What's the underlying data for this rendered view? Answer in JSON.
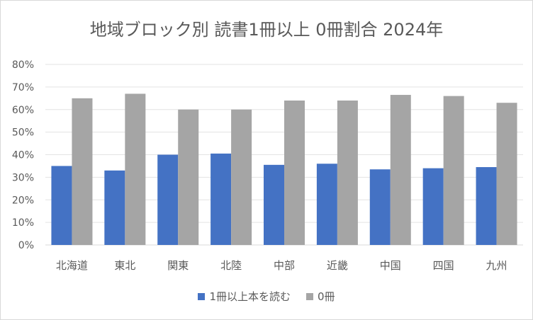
{
  "chart_data": {
    "type": "bar",
    "title": "地域ブロック別 読書1冊以上 0冊割合 2024年",
    "categories": [
      "北海道",
      "東北",
      "関東",
      "北陸",
      "中部",
      "近畿",
      "中国",
      "四国",
      "九州"
    ],
    "series": [
      {
        "name": "1冊以上本を読む",
        "color": "#4472c4",
        "values": [
          0.35,
          0.33,
          0.4,
          0.405,
          0.355,
          0.36,
          0.335,
          0.34,
          0.345
        ]
      },
      {
        "name": "0冊",
        "color": "#a5a5a5",
        "values": [
          0.65,
          0.67,
          0.6,
          0.6,
          0.64,
          0.64,
          0.665,
          0.66,
          0.63
        ]
      }
    ],
    "y_ticks": [
      "0%",
      "10%",
      "20%",
      "30%",
      "40%",
      "50%",
      "60%",
      "70%",
      "80%"
    ],
    "ylim": [
      0,
      0.8
    ],
    "grid": true,
    "legend_position": "bottom"
  }
}
